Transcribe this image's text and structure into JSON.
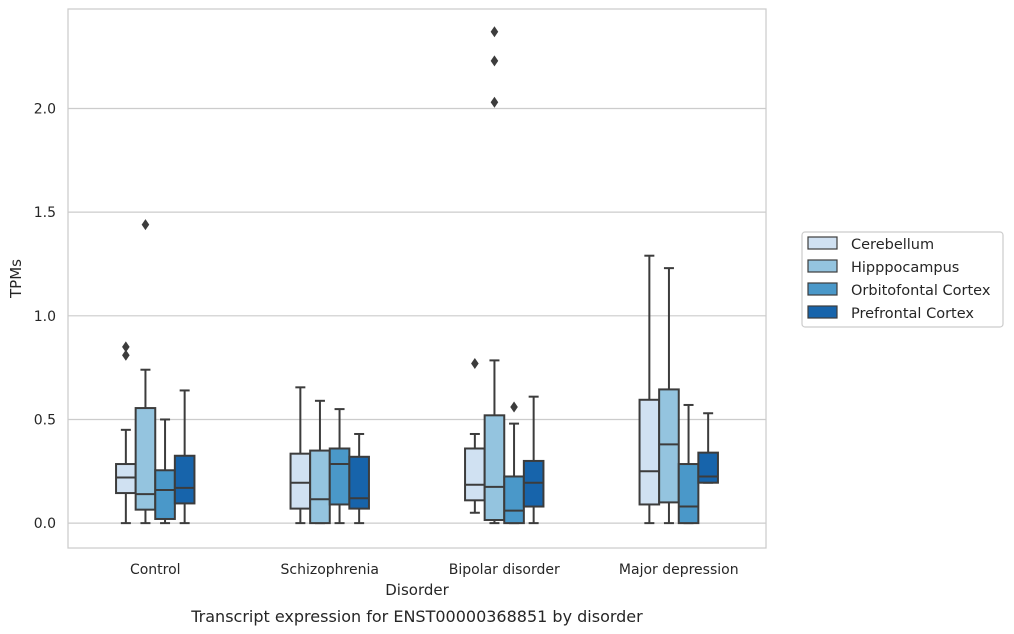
{
  "chart_data": {
    "type": "box",
    "caption": "Transcript expression for ENST00000368851 by disorder",
    "xlabel": "Disorder",
    "ylabel": "TPMs",
    "ylim": [
      -0.12,
      2.48
    ],
    "yticks": [
      "0.0",
      "0.5",
      "1.0",
      "1.5",
      "2.0"
    ],
    "grid": "horizontal",
    "legend_position": "right",
    "categories": [
      "Control",
      "Schizophrenia",
      "Bipolar disorder",
      "Major depression"
    ],
    "series": [
      {
        "name": "Cerebellum",
        "color": "#d0e1f2",
        "boxes": [
          {
            "whisker_low": 0.0,
            "q1": 0.145,
            "median": 0.22,
            "q3": 0.285,
            "whisker_high": 0.45,
            "outliers": [
              0.85,
              0.81
            ]
          },
          {
            "whisker_low": 0.0,
            "q1": 0.07,
            "median": 0.195,
            "q3": 0.335,
            "whisker_high": 0.655,
            "outliers": []
          },
          {
            "whisker_low": 0.05,
            "q1": 0.11,
            "median": 0.185,
            "q3": 0.36,
            "whisker_high": 0.43,
            "outliers": [
              0.77
            ]
          },
          {
            "whisker_low": 0.0,
            "q1": 0.09,
            "median": 0.25,
            "q3": 0.595,
            "whisker_high": 1.29,
            "outliers": []
          }
        ]
      },
      {
        "name": "Hipppocampus",
        "color": "#94c4df",
        "boxes": [
          {
            "whisker_low": 0.0,
            "q1": 0.065,
            "median": 0.14,
            "q3": 0.555,
            "whisker_high": 0.74,
            "outliers": [
              1.44
            ]
          },
          {
            "whisker_low": 0.0,
            "q1": 0.0,
            "median": 0.115,
            "q3": 0.35,
            "whisker_high": 0.59,
            "outliers": []
          },
          {
            "whisker_low": 0.0,
            "q1": 0.015,
            "median": 0.175,
            "q3": 0.52,
            "whisker_high": 0.785,
            "outliers": [
              2.23,
              2.37,
              2.03
            ]
          },
          {
            "whisker_low": 0.0,
            "q1": 0.1,
            "median": 0.38,
            "q3": 0.645,
            "whisker_high": 1.23,
            "outliers": []
          }
        ]
      },
      {
        "name": "Orbitofontal Cortex",
        "color": "#4a98c9",
        "boxes": [
          {
            "whisker_low": 0.0,
            "q1": 0.02,
            "median": 0.16,
            "q3": 0.255,
            "whisker_high": 0.5,
            "outliers": []
          },
          {
            "whisker_low": 0.0,
            "q1": 0.09,
            "median": 0.285,
            "q3": 0.36,
            "whisker_high": 0.55,
            "outliers": []
          },
          {
            "whisker_low": 0.0,
            "q1": 0.0,
            "median": 0.06,
            "q3": 0.225,
            "whisker_high": 0.48,
            "outliers": [
              0.56
            ]
          },
          {
            "whisker_low": 0.0,
            "q1": 0.0,
            "median": 0.08,
            "q3": 0.285,
            "whisker_high": 0.57,
            "outliers": []
          }
        ]
      },
      {
        "name": "Prefrontal Cortex",
        "color": "#1764ab",
        "boxes": [
          {
            "whisker_low": 0.0,
            "q1": 0.095,
            "median": 0.17,
            "q3": 0.325,
            "whisker_high": 0.64,
            "outliers": []
          },
          {
            "whisker_low": 0.0,
            "q1": 0.07,
            "median": 0.12,
            "q3": 0.32,
            "whisker_high": 0.43,
            "outliers": []
          },
          {
            "whisker_low": 0.0,
            "q1": 0.08,
            "median": 0.195,
            "q3": 0.3,
            "whisker_high": 0.61,
            "outliers": []
          },
          {
            "whisker_low": 0.195,
            "q1": 0.195,
            "median": 0.225,
            "q3": 0.34,
            "whisker_high": 0.53,
            "outliers": []
          }
        ]
      }
    ]
  }
}
